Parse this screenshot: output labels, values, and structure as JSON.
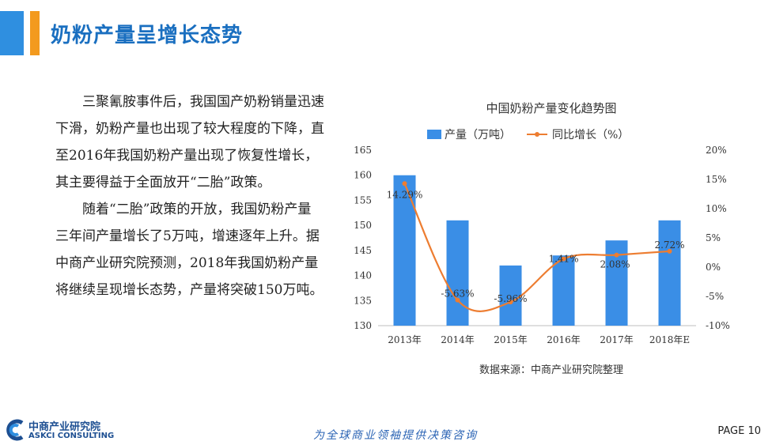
{
  "header": {
    "title": "奶粉产量呈增长态势",
    "accent_blue": "#2f8fe0",
    "accent_orange": "#f39a1e"
  },
  "body": {
    "paragraphs": [
      "三聚氰胺事件后，我国国产奶粉销量迅速下滑，奶粉产量也出现了较大程度的下降，直至2016年我国奶粉产量出现了恢复性增长，其主要得益于全面放开“二胎”政策。",
      "随着“二胎”政策的开放，我国奶粉产量三年间产量增长了5万吨，增速逐年上升。据中商产业研究院预测，2018年我国奶粉产量将继续呈现增长态势，产量将突破150万吨。"
    ]
  },
  "chart_data": {
    "type": "bar",
    "title": "中国奶粉产量变化趋势图",
    "categories": [
      "2013年",
      "2014年",
      "2015年",
      "2016年",
      "2017年",
      "2018年E"
    ],
    "series": [
      {
        "name": "产量（万吨）",
        "type": "bar",
        "axis": "left",
        "color": "#3a8ee6",
        "values": [
          160,
          151,
          142,
          144,
          147,
          151
        ]
      },
      {
        "name": "同比增长（%）",
        "type": "line",
        "axis": "right",
        "color": "#ed7d31",
        "values": [
          14.29,
          -5.63,
          -5.96,
          1.41,
          2.08,
          2.72
        ],
        "labels": [
          "14.29%",
          "-5.63%",
          "-5.96%",
          "1.41%",
          "2.08%",
          "2.72%"
        ]
      }
    ],
    "ylim_left": [
      130,
      165
    ],
    "yticks_left": [
      130,
      135,
      140,
      145,
      150,
      155,
      160,
      165
    ],
    "ylim_right": [
      -10,
      20
    ],
    "yticks_right": [
      -10,
      -5,
      0,
      5,
      10,
      15,
      20
    ],
    "ytick_labels_right": [
      "-10%",
      "-5%",
      "0%",
      "5%",
      "10%",
      "15%",
      "20%"
    ],
    "legend_position": "top",
    "grid": false,
    "source": "数据来源：中商产业研究院整理"
  },
  "footer": {
    "logo_cn": "中商产业研究院",
    "logo_en": "ASKCI CONSULTING",
    "slogan": "为全球商业领袖提供决策咨询",
    "page_label": "PAGE 10"
  }
}
